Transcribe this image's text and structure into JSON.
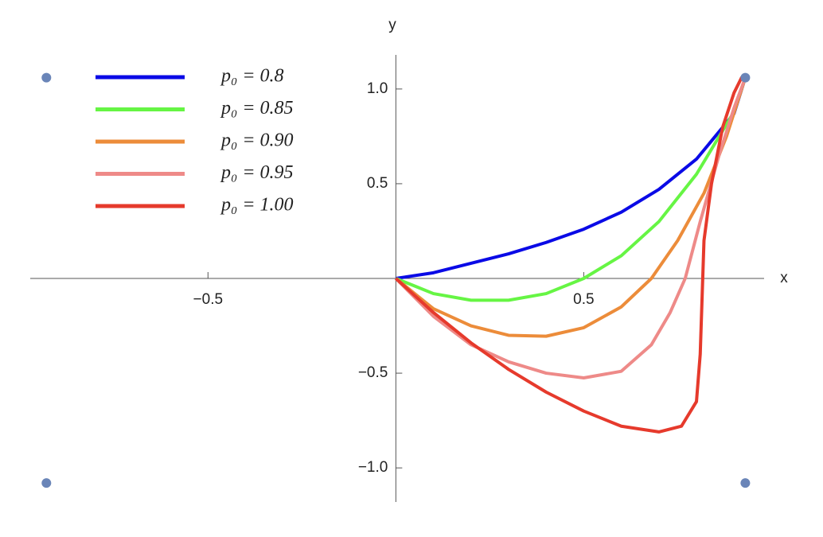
{
  "chart_data": {
    "type": "line",
    "xlabel": "x",
    "ylabel": "y",
    "xlim": [
      -0.973,
      0.98
    ],
    "ylim": [
      -1.18,
      1.18
    ],
    "xticks": [
      {
        "value": -0.5,
        "label": "−0.5"
      },
      0.5
    ],
    "yticks": [
      {
        "value": -1,
        "label": "−1.0"
      },
      {
        "value": -0.5,
        "label": "−0.5"
      },
      0.5,
      {
        "value": 1,
        "label": "1.0"
      }
    ],
    "legend": "top-left",
    "series": [
      {
        "name": "p₀ = 0.8",
        "color": "#0a0ae6",
        "x": [
          0,
          0.1,
          0.2,
          0.3,
          0.4,
          0.5,
          0.6,
          0.7,
          0.8,
          0.9,
          0.93
        ],
        "values": [
          0,
          0.03,
          0.08,
          0.13,
          0.19,
          0.26,
          0.35,
          0.47,
          0.63,
          0.87,
          1.06
        ]
      },
      {
        "name": "p₀ = 0.85",
        "color": "#66f544",
        "x": [
          0,
          0.05,
          0.1,
          0.2,
          0.3,
          0.4,
          0.5,
          0.6,
          0.7,
          0.8,
          0.9,
          0.93
        ],
        "values": [
          0,
          -0.04,
          -0.08,
          -0.115,
          -0.115,
          -0.08,
          0,
          0.12,
          0.3,
          0.55,
          0.88,
          1.06
        ]
      },
      {
        "name": "p₀ = 0.90",
        "color": "#ec8c3a",
        "x": [
          0,
          0.1,
          0.2,
          0.3,
          0.4,
          0.5,
          0.6,
          0.68,
          0.75,
          0.82,
          0.88,
          0.93
        ],
        "values": [
          0,
          -0.16,
          -0.25,
          -0.3,
          -0.305,
          -0.26,
          -0.15,
          0,
          0.2,
          0.45,
          0.75,
          1.06
        ]
      },
      {
        "name": "p₀ = 0.95",
        "color": "#ee8a88",
        "x": [
          0,
          0.1,
          0.2,
          0.3,
          0.4,
          0.5,
          0.6,
          0.68,
          0.73,
          0.77,
          0.81,
          0.86,
          0.9,
          0.93
        ],
        "values": [
          0,
          -0.2,
          -0.35,
          -0.44,
          -0.5,
          -0.525,
          -0.49,
          -0.35,
          -0.18,
          0,
          0.3,
          0.65,
          0.9,
          1.06
        ]
      },
      {
        "name": "p₀ = 1.00",
        "color": "#e63a2c",
        "x": [
          0,
          0.1,
          0.2,
          0.3,
          0.4,
          0.5,
          0.6,
          0.7,
          0.76,
          0.8,
          0.81,
          0.815,
          0.82,
          0.84,
          0.87,
          0.9,
          0.92,
          0.93
        ],
        "values": [
          0,
          -0.18,
          -0.34,
          -0.48,
          -0.6,
          -0.7,
          -0.78,
          -0.81,
          -0.78,
          -0.65,
          -0.4,
          -0.1,
          0.2,
          0.5,
          0.8,
          0.98,
          1.06,
          1.05
        ]
      }
    ],
    "markers": {
      "color": "#6a85b8",
      "x": [
        -0.93,
        0.93,
        -0.93,
        0.93
      ],
      "values": [
        1.06,
        1.06,
        -1.08,
        -1.08
      ]
    }
  }
}
